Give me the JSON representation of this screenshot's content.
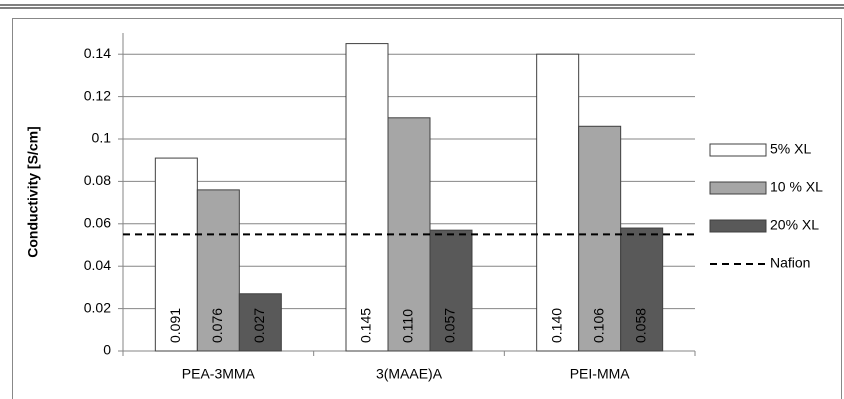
{
  "chart_data": {
    "type": "bar",
    "y_label": "Conductivity [S/cm]",
    "categories": [
      "PEA-3MMA",
      "3(MAAE)A",
      "PEI-MMA"
    ],
    "series": [
      {
        "name": "5% XL",
        "color": "#ffffff",
        "values": [
          0.091,
          0.145,
          0.14
        ],
        "value_labels": [
          "0.091",
          "0.145",
          "0.140"
        ]
      },
      {
        "name": "10 % XL",
        "color": "#a6a6a6",
        "values": [
          0.076,
          0.11,
          0.106
        ],
        "value_labels": [
          "0.076",
          "0.110",
          "0.106"
        ]
      },
      {
        "name": "20% XL",
        "color": "#595959",
        "values": [
          0.027,
          0.057,
          0.058
        ],
        "value_labels": [
          "0.027",
          "0.057",
          "0.058"
        ]
      }
    ],
    "reference_lines": [
      {
        "name": "Nafion",
        "value": 0.055,
        "color": "#000000"
      }
    ],
    "ylim": [
      0,
      0.15
    ],
    "yticks": [
      0,
      0.02,
      0.04,
      0.06,
      0.08,
      0.1,
      0.12,
      0.14
    ],
    "grid": true,
    "legend": "right"
  }
}
